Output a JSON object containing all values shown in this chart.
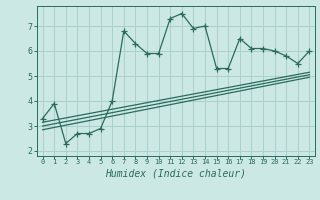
{
  "bg_color": "#cce8e4",
  "grid_color": "#aacfcb",
  "line_color": "#2a6b5e",
  "xlabel": "Humidex (Indice chaleur)",
  "xlim": [
    -0.5,
    23.5
  ],
  "ylim": [
    1.8,
    7.8
  ],
  "xticks": [
    0,
    1,
    2,
    3,
    4,
    5,
    6,
    7,
    8,
    9,
    10,
    11,
    12,
    13,
    14,
    15,
    16,
    17,
    18,
    19,
    20,
    21,
    22,
    23
  ],
  "yticks": [
    2,
    3,
    4,
    5,
    6,
    7
  ],
  "zigzag_x": [
    0,
    1,
    2,
    3,
    4,
    5,
    6,
    7,
    8,
    9,
    10,
    11,
    12,
    13,
    14,
    15,
    16,
    17,
    18,
    19,
    20,
    21,
    22,
    23
  ],
  "zigzag_y": [
    3.3,
    3.9,
    2.3,
    2.7,
    2.7,
    2.9,
    4.0,
    6.8,
    6.3,
    5.9,
    5.9,
    7.3,
    7.5,
    6.9,
    7.0,
    5.3,
    5.3,
    6.5,
    6.1,
    6.1,
    6.0,
    5.8,
    5.5,
    6.0
  ],
  "reg_lines": [
    {
      "x": [
        0,
        23
      ],
      "y": [
        3.15,
        5.15
      ]
    },
    {
      "x": [
        0,
        23
      ],
      "y": [
        3.0,
        5.05
      ]
    },
    {
      "x": [
        0,
        23
      ],
      "y": [
        2.85,
        4.95
      ]
    }
  ],
  "marker": "+",
  "markersize": 4,
  "linewidth": 0.9
}
